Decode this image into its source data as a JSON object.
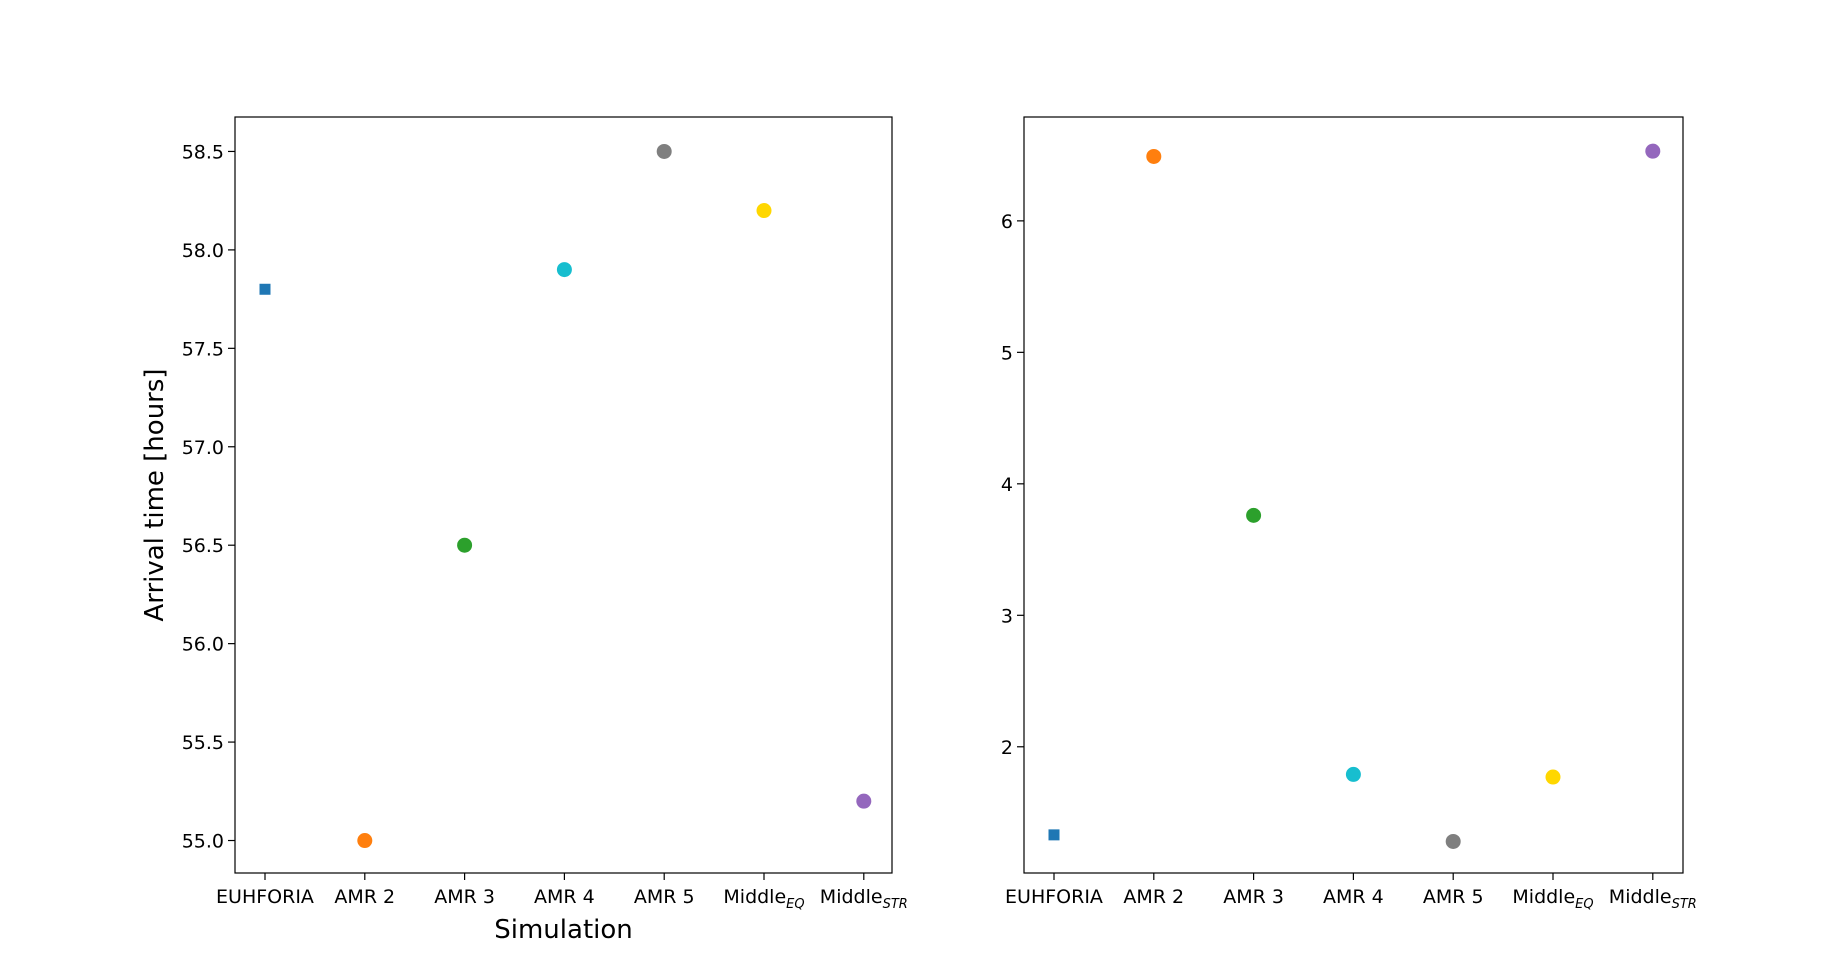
{
  "chart_data": [
    {
      "type": "scatter",
      "title": "",
      "xlabel": "Simulation",
      "ylabel": "Arrival time [hours]",
      "categories": [
        {
          "main": "EUHFORIA",
          "sub": ""
        },
        {
          "main": "AMR 2",
          "sub": ""
        },
        {
          "main": "AMR 3",
          "sub": ""
        },
        {
          "main": "AMR 4",
          "sub": ""
        },
        {
          "main": "AMR 5",
          "sub": ""
        },
        {
          "main": "Middle",
          "sub": "EQ"
        },
        {
          "main": "Middle",
          "sub": "STR"
        }
      ],
      "values": [
        57.8,
        55.0,
        56.5,
        57.9,
        58.5,
        58.2,
        55.2
      ],
      "markers": [
        "square",
        "circle",
        "circle",
        "circle",
        "circle",
        "circle",
        "circle"
      ],
      "colors": [
        "#1f77b4",
        "#ff7f0e",
        "#2ca02c",
        "#17becf",
        "#7f7f7f",
        "#ffd700",
        "#9467bd"
      ],
      "ylim": [
        54.835,
        58.675
      ],
      "yticks": [
        55.0,
        55.5,
        56.0,
        56.5,
        57.0,
        57.5,
        58.0,
        58.5
      ],
      "ytick_labels": [
        "55.0",
        "55.5",
        "56.0",
        "56.5",
        "57.0",
        "57.5",
        "58.0",
        "58.5"
      ],
      "grid": false,
      "legend": "none"
    },
    {
      "type": "scatter",
      "title": "",
      "xlabel": "",
      "ylabel": "",
      "categories": [
        {
          "main": "EUHFORIA",
          "sub": ""
        },
        {
          "main": "AMR 2",
          "sub": ""
        },
        {
          "main": "AMR 3",
          "sub": ""
        },
        {
          "main": "AMR 4",
          "sub": ""
        },
        {
          "main": "AMR 5",
          "sub": ""
        },
        {
          "main": "Middle",
          "sub": "EQ"
        },
        {
          "main": "Middle",
          "sub": "STR"
        }
      ],
      "values": [
        1.33,
        6.49,
        3.76,
        1.79,
        1.28,
        1.77,
        6.53
      ],
      "markers": [
        "square",
        "circle",
        "circle",
        "circle",
        "circle",
        "circle",
        "circle"
      ],
      "colors": [
        "#1f77b4",
        "#ff7f0e",
        "#2ca02c",
        "#17becf",
        "#7f7f7f",
        "#ffd700",
        "#9467bd"
      ],
      "ylim": [
        1.04,
        6.79
      ],
      "yticks": [
        2,
        3,
        4,
        5,
        6
      ],
      "ytick_labels": [
        "2",
        "3",
        "4",
        "5",
        "6"
      ],
      "grid": false,
      "legend": "none"
    }
  ]
}
